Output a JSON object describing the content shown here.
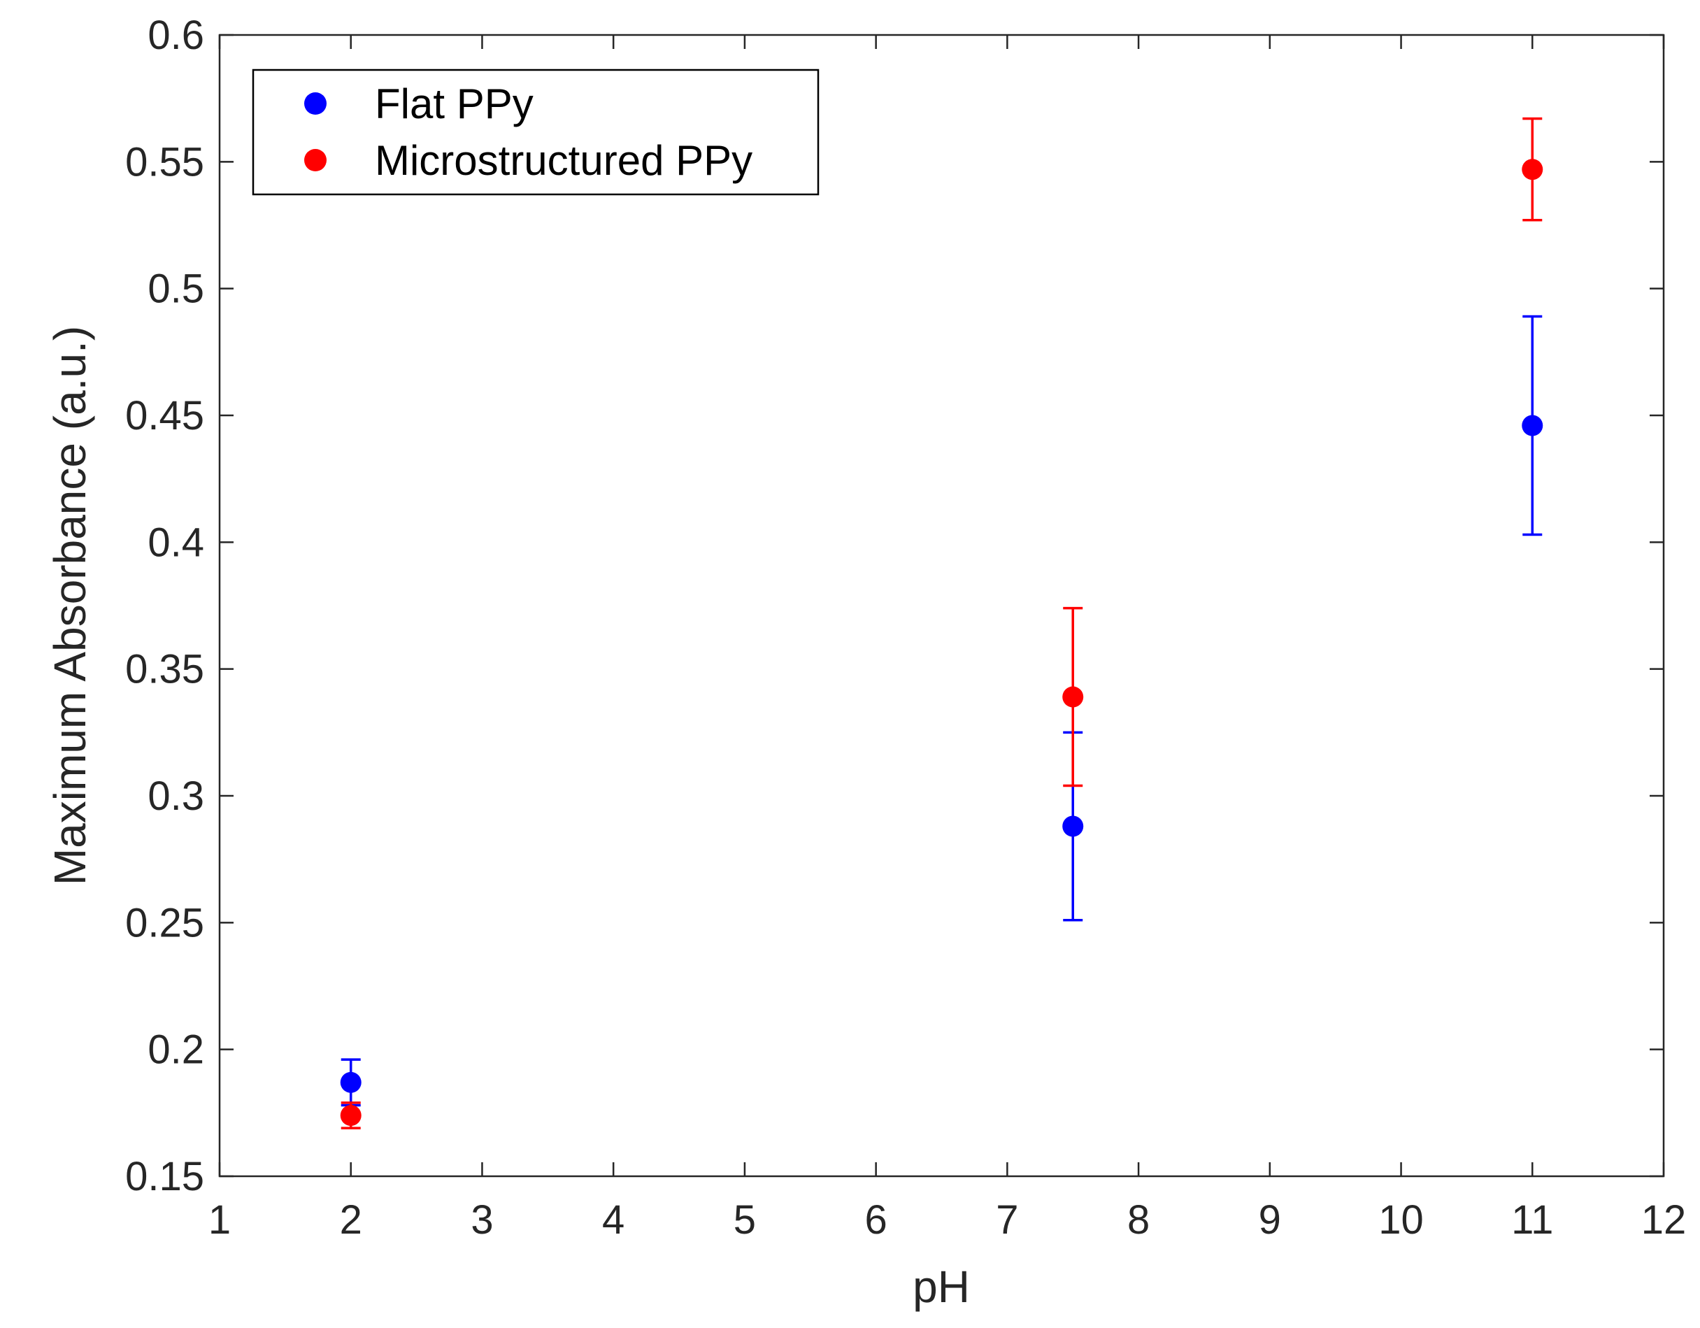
{
  "chart_data": {
    "type": "scatter",
    "title": "",
    "xlabel": "pH",
    "ylabel": "Maximum Absorbance (a.u.)",
    "xlim": [
      1,
      12
    ],
    "ylim": [
      0.15,
      0.6
    ],
    "xticks": [
      1,
      2,
      3,
      4,
      5,
      6,
      7,
      8,
      9,
      10,
      11,
      12
    ],
    "xtick_labels": [
      "1",
      "2",
      "3",
      "4",
      "5",
      "6",
      "7",
      "8",
      "9",
      "10",
      "11",
      "12"
    ],
    "yticks": [
      0.15,
      0.2,
      0.25,
      0.3,
      0.35,
      0.4,
      0.45,
      0.5,
      0.55,
      0.6
    ],
    "ytick_labels": [
      "0.15",
      "0.2",
      "0.25",
      "0.3",
      "0.35",
      "0.4",
      "0.45",
      "0.5",
      "0.55",
      "0.6"
    ],
    "grid": false,
    "legend_position": "top-left",
    "series": [
      {
        "name": "Flat PPy",
        "color": "#0000ff",
        "x": [
          2,
          7.5,
          11
        ],
        "y": [
          0.187,
          0.288,
          0.446
        ],
        "err_low": [
          0.009,
          0.037,
          0.043
        ],
        "err_high": [
          0.009,
          0.037,
          0.043
        ]
      },
      {
        "name": "Microstructured PPy",
        "color": "#ff0000",
        "x": [
          2,
          7.5,
          11
        ],
        "y": [
          0.174,
          0.339,
          0.547
        ],
        "err_low": [
          0.005,
          0.035,
          0.02
        ],
        "err_high": [
          0.005,
          0.035,
          0.02
        ]
      }
    ]
  }
}
